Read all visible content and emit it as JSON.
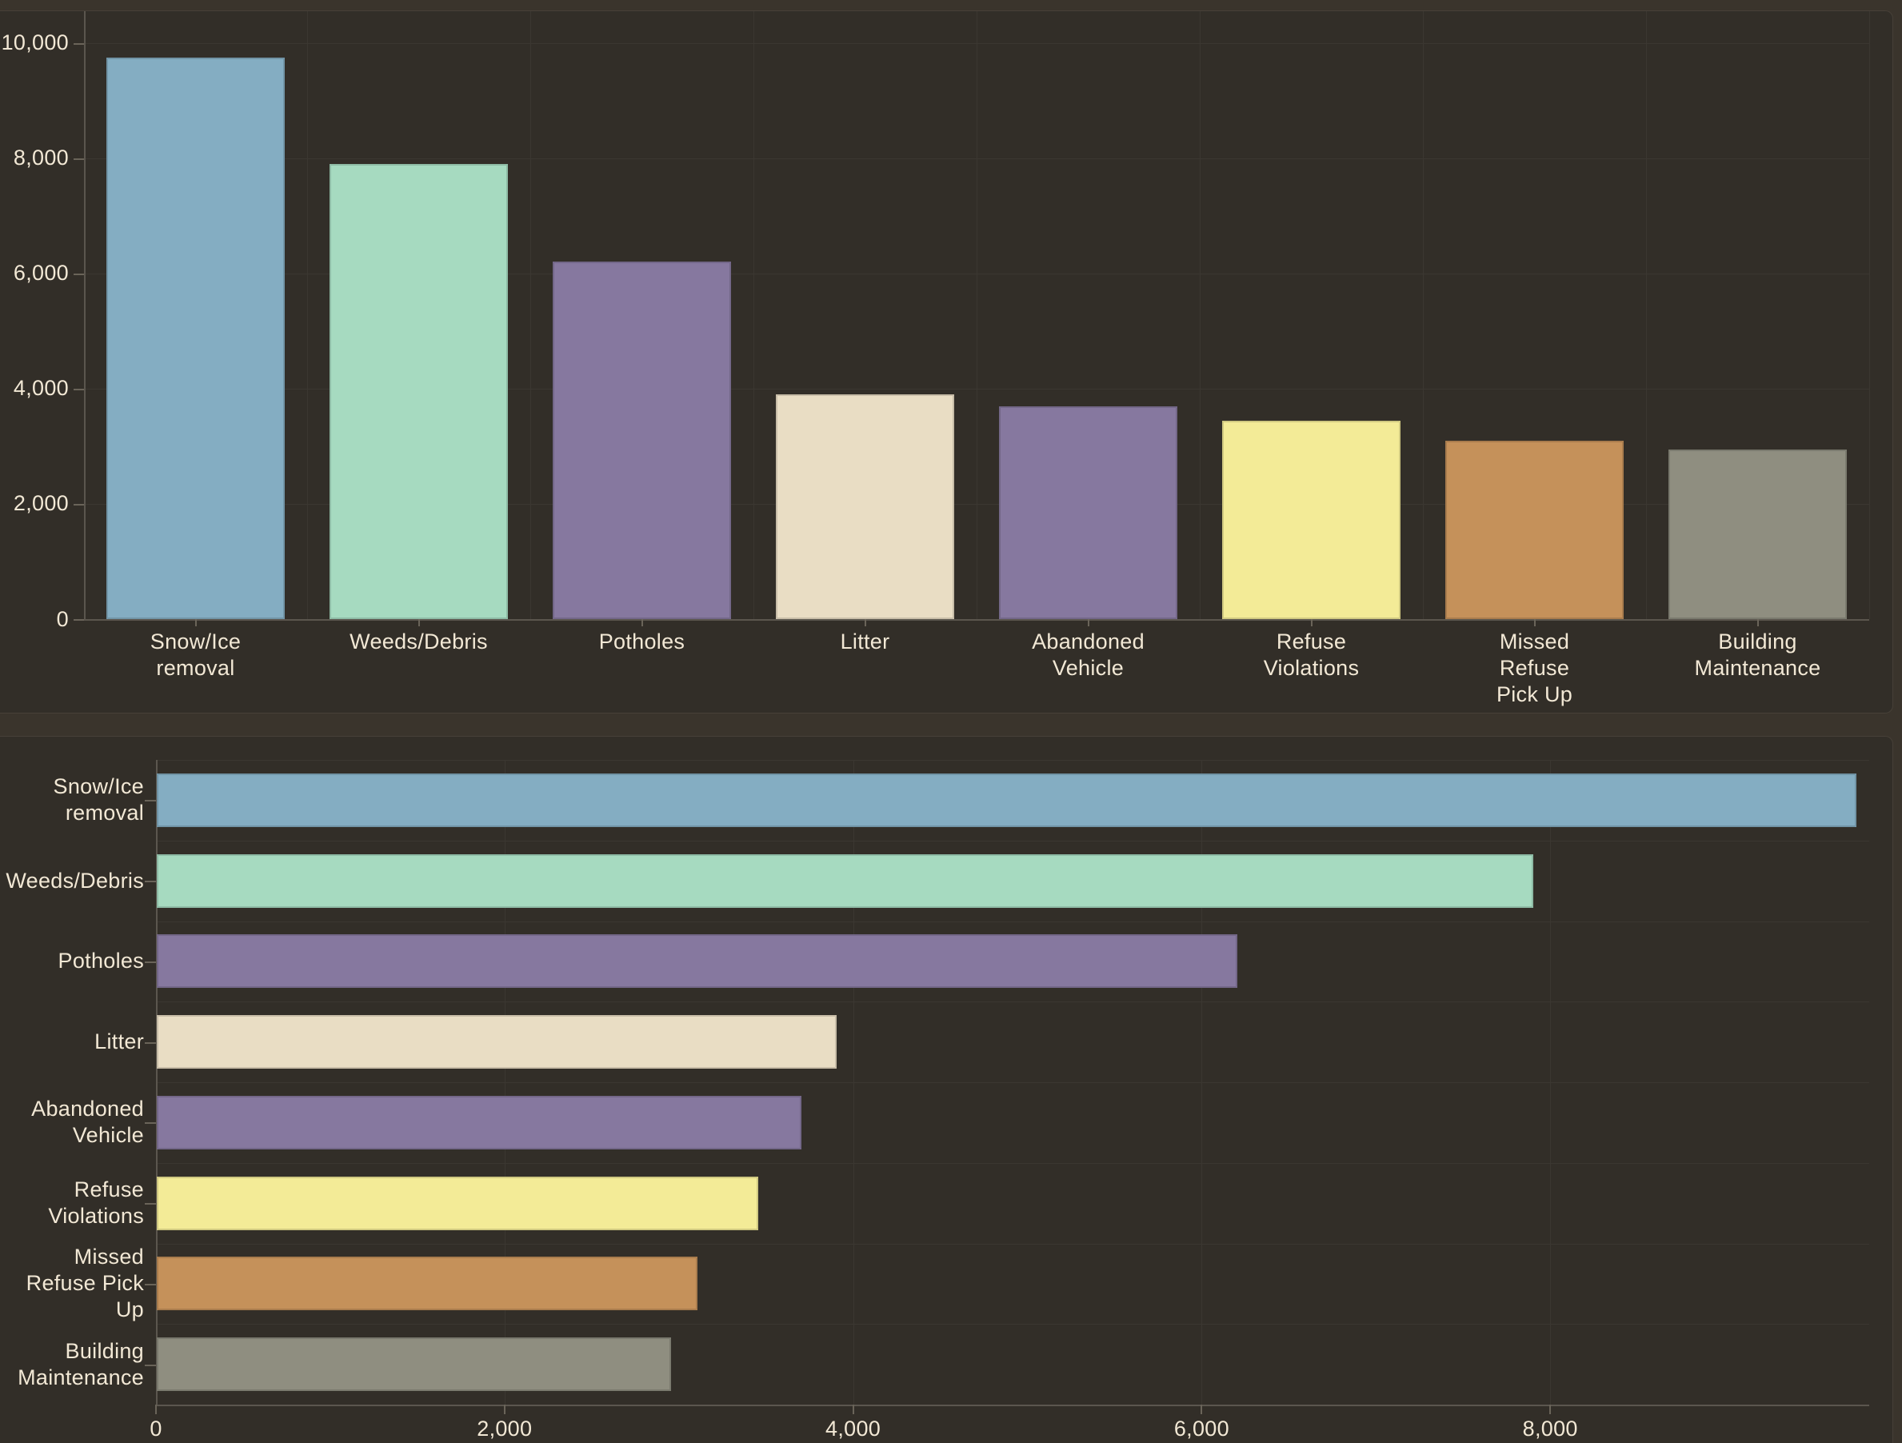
{
  "theme": {
    "page_bg": "#3a342c",
    "panel_bg": "#322e28",
    "panel_border": "#474038",
    "gridline_color": "#3b3731",
    "axis_line_color": "#5b564e",
    "tick_color": "#6a6459",
    "label_color": "#f2e8d5",
    "bar_outline": "rgba(0,0,0,0.14)"
  },
  "chart_data": [
    {
      "id": "service-requests-column-chart",
      "type": "bar",
      "orientation": "vertical",
      "title": "",
      "xlabel": "",
      "ylabel": "",
      "grid": true,
      "legend": false,
      "categories": [
        "Snow/Ice removal",
        "Weeds/Debris",
        "Potholes",
        "Litter",
        "Abandoned Vehicle",
        "Refuse Violations",
        "Missed Refuse Pick Up",
        "Building Maintenance"
      ],
      "values": [
        9750,
        7900,
        6200,
        3900,
        3700,
        3450,
        3100,
        2950
      ],
      "colors": [
        "#84adc2",
        "#a6dac0",
        "#86789f",
        "#e9ddc4",
        "#86789f",
        "#f3eb97",
        "#c5915a",
        "#8f8e80"
      ],
      "label_lines": [
        [
          "Snow/Ice",
          "removal"
        ],
        [
          "Weeds/Debris"
        ],
        [
          "Potholes"
        ],
        [
          "Litter"
        ],
        [
          "Abandoned",
          "Vehicle"
        ],
        [
          "Refuse",
          "Violations"
        ],
        [
          "Missed",
          "Refuse",
          "Pick Up"
        ],
        [
          "Building",
          "Maintenance"
        ]
      ],
      "value_axis": {
        "min": 0,
        "max": 10550,
        "tick_values": [
          0,
          2000,
          4000,
          6000,
          8000,
          10000
        ],
        "tick_labels": [
          "0",
          "2,000",
          "4,000",
          "6,000",
          "8,000",
          "10,000"
        ]
      }
    },
    {
      "id": "service-requests-bar-chart",
      "type": "bar",
      "orientation": "horizontal",
      "title": "",
      "xlabel": "",
      "ylabel": "",
      "grid": true,
      "legend": false,
      "categories": [
        "Snow/Ice removal",
        "Weeds/Debris",
        "Potholes",
        "Litter",
        "Abandoned Vehicle",
        "Refuse Violations",
        "Missed Refuse Pick Up",
        "Building Maintenance"
      ],
      "values": [
        9750,
        7900,
        6200,
        3900,
        3700,
        3450,
        3100,
        2950
      ],
      "colors": [
        "#84adc2",
        "#a6dac0",
        "#86789f",
        "#e9ddc4",
        "#86789f",
        "#f3eb97",
        "#c5915a",
        "#8f8e80"
      ],
      "label_lines": [
        [
          "Snow/Ice",
          "removal"
        ],
        [
          "Weeds/Debris"
        ],
        [
          "Potholes"
        ],
        [
          "Litter"
        ],
        [
          "Abandoned",
          "Vehicle"
        ],
        [
          "Refuse",
          "Violations"
        ],
        [
          "Missed",
          "Refuse Pick",
          "Up"
        ],
        [
          "Building",
          "Maintenance"
        ]
      ],
      "value_axis": {
        "min": 0,
        "max": 9830,
        "tick_values": [
          0,
          2000,
          4000,
          6000,
          8000
        ],
        "tick_labels": [
          "0",
          "2,000",
          "4,000",
          "6,000",
          "8,000"
        ]
      }
    }
  ]
}
